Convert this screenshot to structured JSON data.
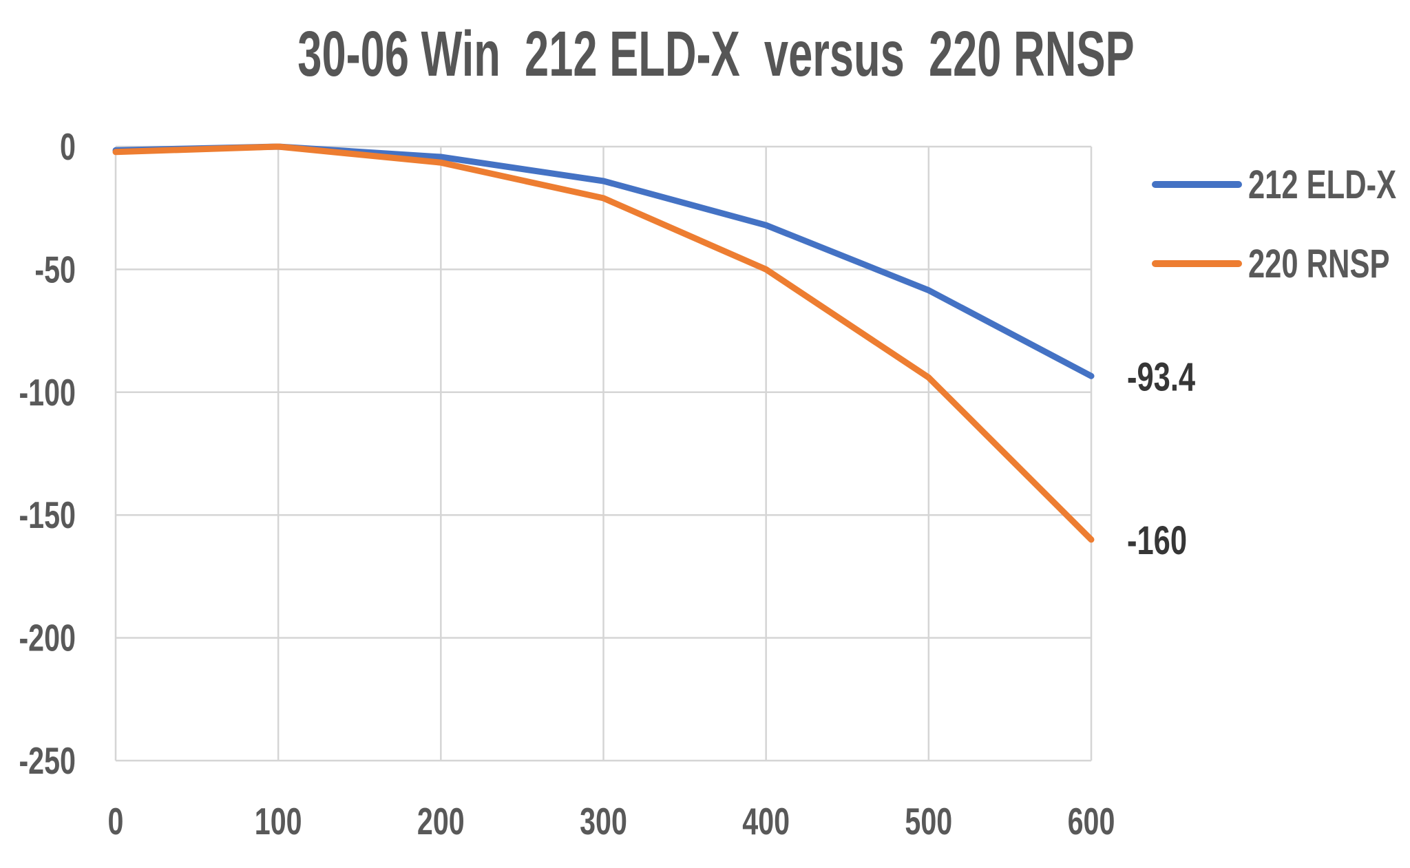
{
  "chart_data": {
    "type": "line",
    "title": "30-06 Win  212 ELD-X  versus  220 RNSP",
    "xlabel": "",
    "ylabel": "",
    "x": [
      0,
      100,
      200,
      300,
      400,
      500,
      600
    ],
    "x_ticks": [
      "0",
      "100",
      "200",
      "300",
      "400",
      "500",
      "600"
    ],
    "y_ticks": [
      "0",
      "-50",
      "-100",
      "-150",
      "-200",
      "-250"
    ],
    "xlim": [
      0,
      600
    ],
    "ylim": [
      -250,
      0
    ],
    "grid": true,
    "legend_position": "right",
    "series": [
      {
        "name": "212 ELD-X",
        "color": "#4472C4",
        "values": [
          -1.5,
          0,
          -4.2,
          -14,
          -32,
          -58.5,
          -93.4
        ],
        "end_label": "-93.4"
      },
      {
        "name": "220 RNSP",
        "color": "#ED7D31",
        "values": [
          -2.2,
          0,
          -6.5,
          -21,
          -50,
          -94,
          -160
        ],
        "end_label": "-160"
      }
    ],
    "colors": {
      "background": "#FFFFFF",
      "grid": "#D5D5D5",
      "title_text": "#565656",
      "tick_text": "#595959",
      "end_label_text": "#363636"
    }
  }
}
